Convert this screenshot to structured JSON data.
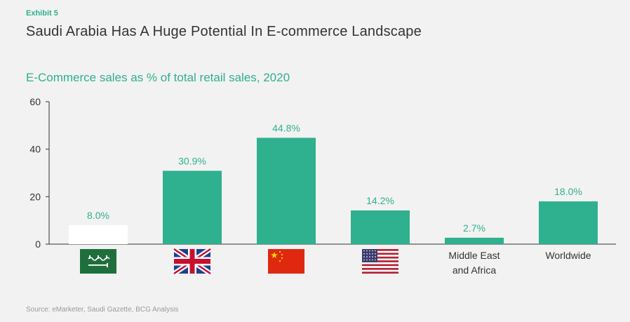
{
  "header": {
    "exhibit": "Exhibit 5",
    "title": "Saudi Arabia Has A Huge Potential In E-commerce Landscape",
    "subtitle": "E-Commerce sales as % of total retail sales, 2020"
  },
  "footer": {
    "source": "Source: eMarketer, Saudi Gazette, BCG Analysis"
  },
  "colors": {
    "bar": "#2fb08e",
    "highlight_bar": "#ffffff",
    "label": "#2fb08e",
    "axis": "#333333"
  },
  "chart_data": {
    "type": "bar",
    "title": "E-Commerce sales as % of total retail sales, 2020",
    "categories": [
      "Saudi Arabia",
      "United Kingdom",
      "China",
      "United States",
      "Middle East and Africa",
      "Worldwide"
    ],
    "category_display": [
      {
        "kind": "flag",
        "icon": "saudi-flag-icon"
      },
      {
        "kind": "flag",
        "icon": "uk-flag-icon"
      },
      {
        "kind": "flag",
        "icon": "china-flag-icon"
      },
      {
        "kind": "flag",
        "icon": "us-flag-icon"
      },
      {
        "kind": "text",
        "lines": [
          "Middle East",
          "and Africa"
        ]
      },
      {
        "kind": "text",
        "lines": [
          "Worldwide"
        ]
      }
    ],
    "values": [
      8.0,
      30.9,
      44.8,
      14.2,
      2.7,
      18.0
    ],
    "value_labels": [
      "8.0%",
      "30.9%",
      "44.8%",
      "14.2%",
      "2.7%",
      "18.0%"
    ],
    "highlighted_index": 0,
    "ylim": [
      0,
      60
    ],
    "yticks": [
      "0",
      "20",
      "40",
      "60"
    ],
    "ytick_values": [
      0,
      20,
      40,
      60
    ],
    "grid": false,
    "legend": "none"
  }
}
